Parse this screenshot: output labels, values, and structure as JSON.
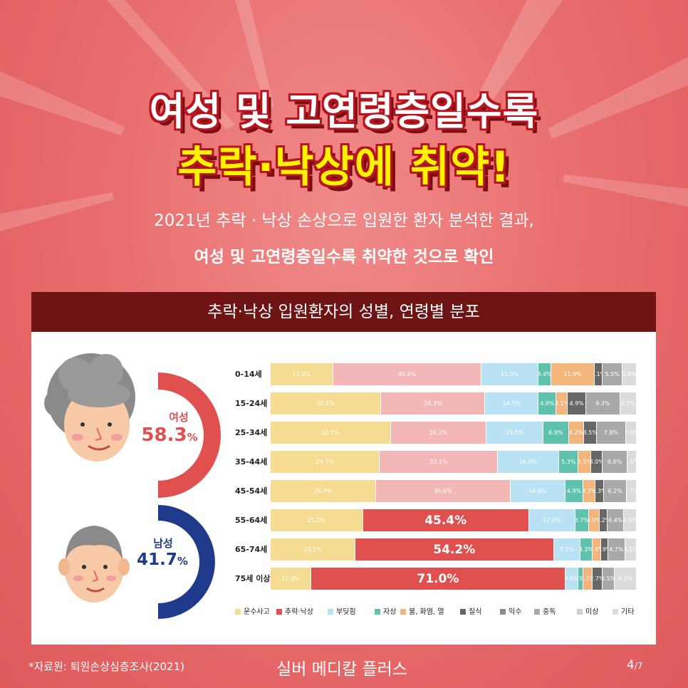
{
  "title": {
    "line1": "여성 및 고연령층일수록",
    "line2": "추락·낙상에 취약!"
  },
  "subtitle": {
    "line1": "2021년 추락 · 낙상 손상으로 입원한 환자 분석한 결과,",
    "line2": "여성 및 고연령층일수록 취약한 것으로 확인"
  },
  "panel_title": "추락·낙상 입원환자의 성별, 연령별 분포",
  "gender": {
    "female": {
      "label": "여성",
      "value": "58.3",
      "unit": "%",
      "share": 0.583,
      "color": "#e0504f"
    },
    "male": {
      "label": "남성",
      "value": "41.7",
      "unit": "%",
      "share": 0.417,
      "color": "#1f3a8a"
    }
  },
  "chart_data": {
    "type": "bar",
    "orientation": "horizontal-stacked",
    "title": "추락·낙상 입원환자의 성별, 연령별 분포",
    "categories": [
      "0-14세",
      "15-24세",
      "25-34세",
      "35-44세",
      "45-54세",
      "55-64세",
      "65-74세",
      "75세 이상"
    ],
    "series": [
      {
        "name": "운수사고",
        "color": "#f6dc92",
        "values": [
          17.0,
          30.1,
          32.7,
          29.7,
          28.7,
          25.2,
          23.1,
          11.3
        ],
        "labels": [
          "17.0%",
          "30.1%",
          "32.7%",
          "29.7%",
          "28.7%",
          "25.2%",
          "23.1%",
          "11.3%"
        ]
      },
      {
        "name": "추락·낙상",
        "color_light": "#f2b7b6",
        "color": "#e0504f",
        "values": [
          40.4,
          28.3,
          26.1,
          32.1,
          36.6,
          45.4,
          54.2,
          71.0
        ],
        "labels": [
          "40.4%",
          "28.3%",
          "26.1%",
          "32.1%",
          "36.6%",
          "45.4%",
          "54.2%",
          "71.0%"
        ]
      },
      {
        "name": "부딪힘",
        "color": "#b9e2f4",
        "values": [
          15.5,
          14.5,
          15.5,
          16.6,
          14.9,
          12.6,
          7.2,
          3.6
        ],
        "labels": [
          "15.5%",
          "14.5%",
          "15.5%",
          "16.6%",
          "14.9%",
          "12.6%",
          "7.2%",
          "3.6%"
        ]
      },
      {
        "name": "자상",
        "color": "#5fc2ad",
        "values": [
          3.4,
          4.9,
          6.9,
          5.3,
          4.9,
          3.7,
          3.3,
          1.3
        ],
        "labels": [
          "3.4%",
          "4.9%",
          "6.9%",
          "5.3%",
          "4.9%",
          "3.7%",
          "3.3%",
          "1.3%"
        ]
      },
      {
        "name": "불, 화염, 열",
        "color": "#f4b57c",
        "values": [
          11.9,
          3.1,
          4.2,
          3.5,
          3.3,
          3.0,
          2.4,
          2.7
        ],
        "labels": [
          "11.9%",
          "3.1%",
          "4.2%",
          "3.5%",
          "3.3%",
          "3.0%",
          "2.4%",
          "2.7%"
        ]
      },
      {
        "name": "질식",
        "color": "#666666",
        "values": [
          2.1,
          4.9,
          3.5,
          3.0,
          2.3,
          2.2,
          1.9,
          2.7
        ],
        "labels": [
          "2.1%",
          "4.9%",
          "3.5%",
          "3.0%",
          "2.3%",
          "2.2%",
          "1.9%",
          "2.7%"
        ]
      },
      {
        "name": "익수",
        "color": "#8c8c8c",
        "values": [
          0,
          0,
          0,
          0,
          0,
          0,
          0,
          0
        ],
        "labels": [
          "",
          "",
          "",
          "",
          "",
          "",
          "",
          ""
        ]
      },
      {
        "name": "중독",
        "color": "#a9a9a9",
        "values": [
          5.5,
          9.3,
          7.8,
          6.8,
          6.2,
          4.4,
          4.7,
          3.5
        ],
        "labels": [
          "5.5%",
          "9.3%",
          "7.8%",
          "6.8%",
          "6.2%",
          "4.4%",
          "4.7%",
          "3.5%"
        ]
      },
      {
        "name": "미상",
        "color": "#d0d0d0",
        "values": [
          0,
          0,
          0,
          0,
          0,
          0,
          0,
          0
        ],
        "labels": [
          "",
          "",
          "",
          "",
          "",
          "",
          "",
          ""
        ]
      },
      {
        "name": "기타",
        "color": "#dcdcdc",
        "values": [
          3.8,
          4.5,
          3.0,
          2.5,
          2.7,
          3.5,
          3.1,
          6.1
        ],
        "labels": [
          "3.8%",
          "4.5%",
          "3.0%",
          "2.5%",
          "2.7%",
          "3.5%",
          "3.1%",
          "6.1%"
        ]
      }
    ],
    "highlight_rows": [
      5,
      6,
      7
    ],
    "xlim": [
      0,
      100
    ],
    "legend_position": "bottom"
  },
  "source": "*자료원: 퇴원손상심층조사(2021)",
  "brand": "실버 메디칼 플러스",
  "page": {
    "current": "4",
    "total": "/7"
  }
}
